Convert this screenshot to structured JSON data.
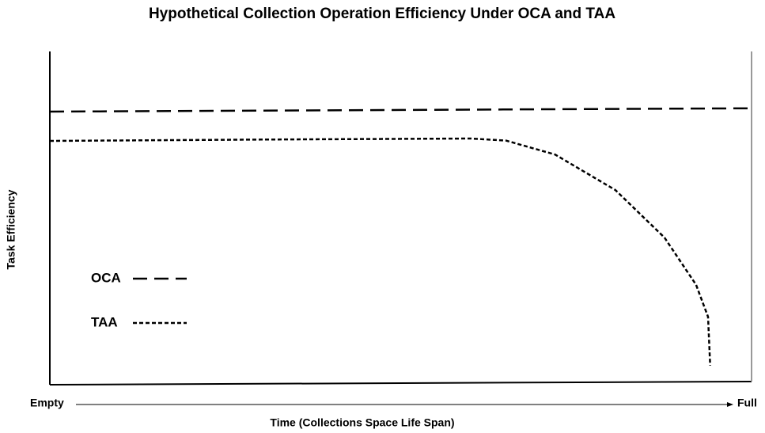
{
  "chart_data": {
    "type": "line",
    "title": "Hypothetical Collection Operation Efficiency Under OCA and TAA",
    "x_label": "Time (Collections Space Life Span)",
    "y_label": "Task Efficiency",
    "x_start_label": "Empty",
    "x_end_label": "Full",
    "xlim": [
      0,
      100
    ],
    "ylim": [
      0,
      100
    ],
    "grid": false,
    "legend": "lower left",
    "series": [
      {
        "name": "OCA",
        "color": "#000000",
        "style": "dashed",
        "x": [
          0,
          100
        ],
        "values": [
          81.9,
          82.9
        ]
      },
      {
        "name": "TAA",
        "color": "#000000",
        "style": "dotted",
        "x": [
          0,
          30,
          60,
          65,
          72,
          80.6,
          87.6,
          92.1,
          93.8,
          94.1
        ],
        "values": [
          73.1,
          73.5,
          73.8,
          73.2,
          69,
          58.3,
          44,
          29.8,
          20.2,
          5.5
        ]
      }
    ]
  }
}
